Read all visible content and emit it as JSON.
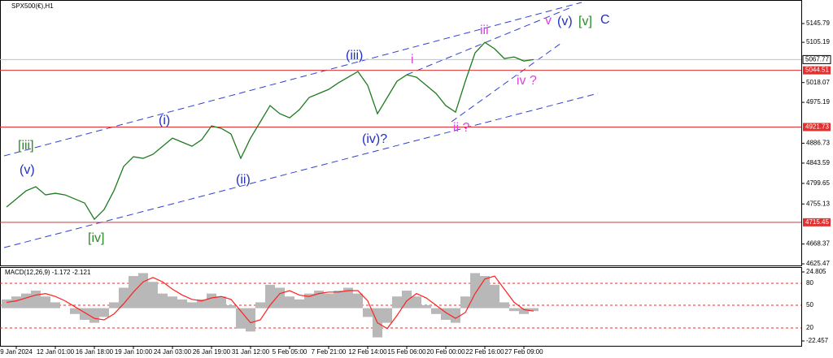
{
  "chart_data": [
    {
      "type": "line",
      "title": "SPX500(€),H1",
      "color": "#1f7a1f",
      "categories": [
        null,
        "9 Jan 2024",
        null,
        null,
        null,
        "12 Jan 01:00",
        null,
        null,
        null,
        "16 Jan 18:00",
        null,
        null,
        null,
        "19 Jan 10:00",
        null,
        null,
        null,
        "24 Jan 03:00",
        null,
        null,
        null,
        "26 Jan 19:00",
        null,
        null,
        null,
        "31 Jan 12:00",
        null,
        null,
        null,
        "5 Feb 05:00",
        null,
        null,
        null,
        "7 Feb 21:00",
        null,
        null,
        null,
        "12 Feb 14:00",
        null,
        null,
        null,
        "15 Feb 06:00",
        null,
        null,
        null,
        "20 Feb 00:00",
        null,
        null,
        null,
        "22 Feb 16:00",
        null,
        null,
        null,
        "27 Feb 09:00",
        null
      ],
      "values": [
        4748.5,
        4766.0,
        4783.6,
        4792.4,
        4774.8,
        4778.3,
        4774.8,
        4766.0,
        4757.2,
        4722.1,
        4743.2,
        4783.6,
        4836.3,
        4857.4,
        4853.9,
        4862.7,
        4880.2,
        4897.8,
        4889.0,
        4880.2,
        4894.3,
        4924.2,
        4918.9,
        4906.6,
        4853.9,
        4897.8,
        4932.9,
        4968.1,
        4950.5,
        4941.7,
        4959.3,
        4985.6,
        4994.4,
        5003.2,
        5017.3,
        5029.6,
        5041.9,
        5012.0,
        4950.5,
        4985.6,
        5020.8,
        5034.8,
        5029.6,
        5012.0,
        4994.4,
        4968.1,
        4954.0,
        5020.8,
        5082.3,
        5105.1,
        5091.1,
        5070.0,
        5073.5,
        5064.7,
        5067.77
      ],
      "ylim": [
        4622,
        5188
      ],
      "yticks": [
        5145.79,
        5105.19,
        5018.07,
        4975.19,
        4886.73,
        4843.59,
        4799.65,
        4755.13,
        4668.37,
        4625.47
      ],
      "current_price": 5067.77,
      "levels": [
        5044.51,
        4921.73,
        4715.45
      ],
      "level_color": "#e03030",
      "annotations": [
        {
          "text": "[iii]",
          "color": "#2a8a2a"
        },
        {
          "text": "(v)",
          "color": "#2030c0"
        },
        {
          "text": "[iv]",
          "color": "#2a8a2a"
        },
        {
          "text": "(i)",
          "color": "#2030c0"
        },
        {
          "text": "(ii)",
          "color": "#2030c0"
        },
        {
          "text": "(iii)",
          "color": "#2030c0"
        },
        {
          "text": "(iv)?",
          "color": "#2030c0"
        },
        {
          "text": "i",
          "color": "#e040e0"
        },
        {
          "text": "ii ?",
          "color": "#e040e0"
        },
        {
          "text": "iii",
          "color": "#e040e0"
        },
        {
          "text": "iv ?",
          "color": "#e040e0"
        },
        {
          "text": "v",
          "color": "#e040e0"
        },
        {
          "text": "(v)",
          "color": "#2030c0"
        },
        {
          "text": "[v]",
          "color": "#2a8a2a"
        },
        {
          "text": "C",
          "color": "#2030c0"
        }
      ]
    },
    {
      "type": "bar",
      "title": "MACD(12,26,9) -1.172 -2.121",
      "color": "#b8b8b8",
      "signal_color": "#ff2020",
      "values": [
        6,
        8,
        10,
        12,
        8,
        4,
        0,
        -4,
        -8,
        -10,
        -6,
        4,
        14,
        22,
        24,
        18,
        10,
        8,
        6,
        4,
        6,
        10,
        8,
        2,
        -14,
        -16,
        4,
        16,
        14,
        8,
        6,
        10,
        12,
        10,
        12,
        14,
        10,
        -6,
        -20,
        -10,
        8,
        12,
        8,
        2,
        -4,
        -8,
        -10,
        8,
        24,
        22,
        16,
        4,
        -2,
        -4,
        -2
      ],
      "signal": [
        4,
        5,
        7,
        9,
        10,
        8,
        5,
        1,
        -3,
        -7,
        -8,
        -4,
        3,
        11,
        18,
        21,
        18,
        13,
        9,
        6,
        5,
        7,
        8,
        6,
        -2,
        -10,
        -8,
        2,
        10,
        12,
        9,
        8,
        10,
        11,
        11,
        12,
        12,
        5,
        -10,
        -14,
        -5,
        5,
        10,
        7,
        2,
        -3,
        -7,
        -3,
        10,
        20,
        22,
        13,
        4,
        -1,
        -2
      ],
      "ylim": [
        -22.457,
        24.805
      ],
      "yticks": [
        24.805,
        -22.457
      ],
      "level_labels": [
        "80",
        "50",
        "20"
      ]
    }
  ]
}
